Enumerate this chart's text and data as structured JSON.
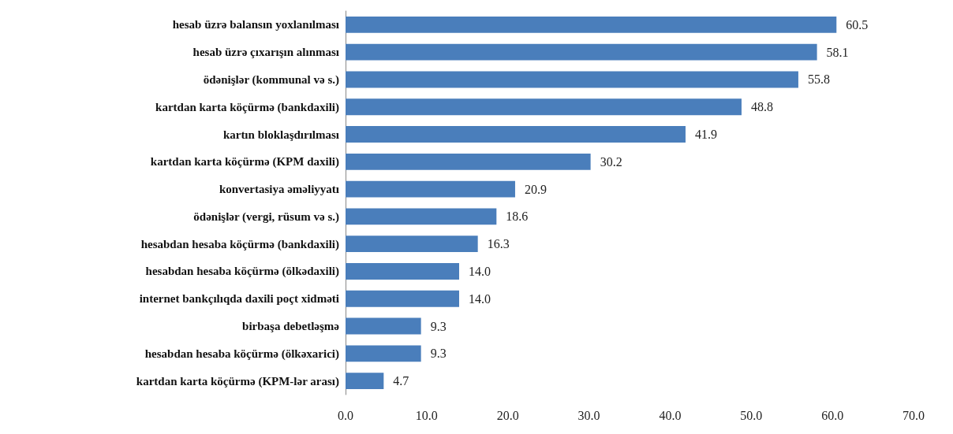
{
  "chart_data": {
    "type": "bar",
    "orientation": "horizontal",
    "categories": [
      "hesab üzrə balansın yoxlanılması",
      "hesab üzrə çıxarışın alınması",
      "ödənişlər (kommunal və s.)",
      "kartdan karta köçürmə (bankdaxili)",
      "kartın bloklaşdırılması",
      "kartdan karta köçürmə (KPM daxili)",
      "konvertasiya əməliyyatı",
      "ödənişlər (vergi, rüsum və s.)",
      "hesabdan hesaba köçürmə (bankdaxili)",
      "hesabdan hesaba köçürmə (ölkədaxili)",
      "internet bankçılıqda daxili poçt xidməti",
      "birbaşa debetləşmə",
      "hesabdan hesaba köçürmə (ölkəxarici)",
      "kartdan karta köçürmə (KPM-lər arası)"
    ],
    "values": [
      60.5,
      58.1,
      55.8,
      48.8,
      41.9,
      30.2,
      20.9,
      18.6,
      16.3,
      14.0,
      14.0,
      9.3,
      9.3,
      4.7
    ],
    "value_labels": [
      "60.5",
      "58.1",
      "55.8",
      "48.8",
      "41.9",
      "30.2",
      "20.9",
      "18.6",
      "16.3",
      "14.0",
      "14.0",
      "9.3",
      "9.3",
      "4.7"
    ],
    "color": "#4a7ebb",
    "xlim": [
      0,
      70
    ],
    "xticks": [
      {
        "value": 0,
        "label": "0.0"
      },
      {
        "value": 10,
        "label": "10.0"
      },
      {
        "value": 20,
        "label": "20.0"
      },
      {
        "value": 30,
        "label": "30.0"
      },
      {
        "value": 40,
        "label": "40.0"
      },
      {
        "value": 50,
        "label": "50.0"
      },
      {
        "value": 60,
        "label": "60.0"
      },
      {
        "value": 70,
        "label": "70.0"
      }
    ],
    "grid": false
  }
}
